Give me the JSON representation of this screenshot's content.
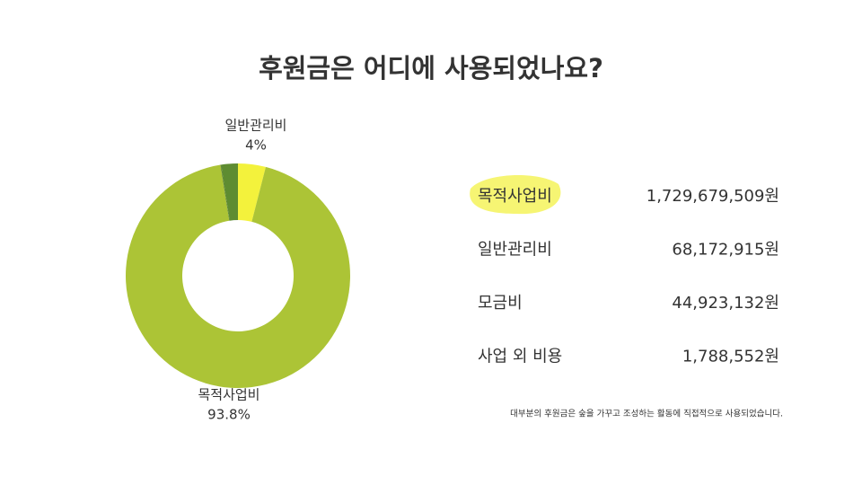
{
  "chart_data": {
    "type": "donut",
    "title": "후원금은 어디에 사용되었나요?",
    "categories": [
      "일반관리비",
      "목적사업비",
      "사업 외 비용",
      "모금비"
    ],
    "values": [
      4,
      93.8,
      0.1,
      2.4
    ],
    "value_labels": [
      "4%",
      "93.8%",
      null,
      null
    ],
    "colors": [
      "#f3f23c",
      "#acc436",
      "#4f7a28",
      "#5e8c31"
    ]
  },
  "table": {
    "rows": [
      [
        "목적사업비",
        "1,729,679,509원"
      ],
      [
        "일반관리비",
        "68,172,915원"
      ],
      [
        "모금비",
        "44,923,132원"
      ],
      [
        "사업 외 비용",
        "1,788,552원"
      ]
    ]
  },
  "footnote": "대부분의 후원금은 숲을 가꾸고 조성하는 활동에 직접적으로 사용되었습니다."
}
